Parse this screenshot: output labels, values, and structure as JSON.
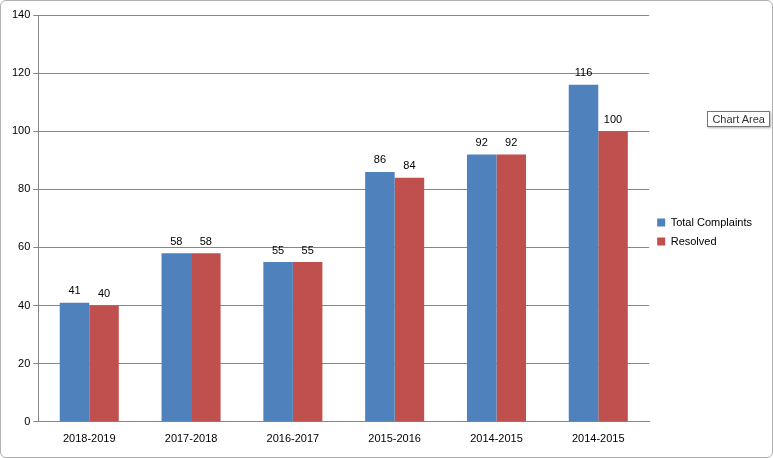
{
  "chart_data": {
    "type": "bar",
    "categories": [
      "2018-2019",
      "2017-2018",
      "2016-2017",
      "2015-2016",
      "2014-2015",
      "2014-2015"
    ],
    "series": [
      {
        "name": "Total Complaints",
        "color": "#4f81bd",
        "values": [
          41,
          58,
          55,
          86,
          92,
          116
        ]
      },
      {
        "name": "Resolved",
        "color": "#c0504d",
        "values": [
          40,
          58,
          55,
          84,
          92,
          100
        ]
      }
    ],
    "ylim": [
      0,
      140
    ],
    "yticks": [
      0,
      20,
      40,
      60,
      80,
      100,
      120,
      140
    ],
    "grid": true,
    "legend": "right",
    "data_labels": true,
    "annotation": "Chart Area"
  }
}
